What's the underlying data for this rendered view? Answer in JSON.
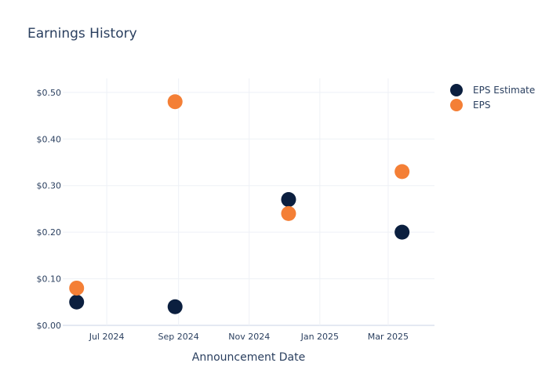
{
  "chart_data": {
    "type": "scatter",
    "title": "Earnings History",
    "xlabel": "Announcement Date",
    "ylabel": "",
    "x_ticks": [
      "Jul 2024",
      "Sep 2024",
      "Nov 2024",
      "Jan 2025",
      "Mar 2025"
    ],
    "x_tick_dates": [
      "2024-07-01",
      "2024-09-01",
      "2024-11-01",
      "2025-01-01",
      "2025-03-01"
    ],
    "xlim": [
      "2024-05-24",
      "2025-04-10"
    ],
    "y_ticks": [
      "$0.00",
      "$0.10",
      "$0.20",
      "$0.30",
      "$0.40",
      "$0.50"
    ],
    "y_tick_values": [
      0,
      0.1,
      0.2,
      0.3,
      0.4,
      0.5
    ],
    "ylim": [
      0,
      0.53
    ],
    "grid": true,
    "legend_position": "top-right",
    "series": [
      {
        "name": "EPS Estimate",
        "color": "#0b1f3f",
        "points": [
          {
            "x": "2024-06-05",
            "y": 0.05
          },
          {
            "x": "2024-08-29",
            "y": 0.04
          },
          {
            "x": "2024-12-05",
            "y": 0.27
          },
          {
            "x": "2025-03-13",
            "y": 0.2
          }
        ]
      },
      {
        "name": "EPS",
        "color": "#f47f36",
        "points": [
          {
            "x": "2024-06-05",
            "y": 0.08
          },
          {
            "x": "2024-08-29",
            "y": 0.48
          },
          {
            "x": "2024-12-05",
            "y": 0.24
          },
          {
            "x": "2025-03-13",
            "y": 0.33
          }
        ]
      }
    ]
  }
}
